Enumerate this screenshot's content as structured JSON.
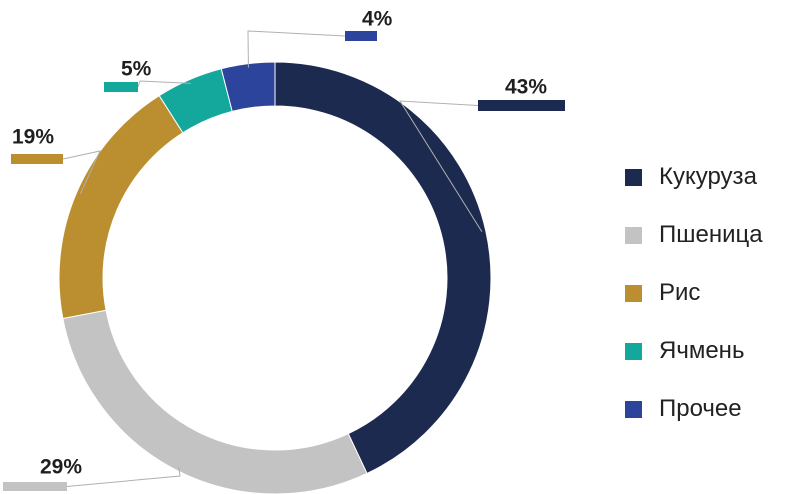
{
  "chart_data": {
    "type": "pie",
    "donut": true,
    "title": "",
    "labels": [
      "Кукуруза",
      "Пшеница",
      "Рис",
      "Ячмень",
      "Прочее"
    ],
    "values": [
      43,
      29,
      19,
      5,
      4
    ],
    "value_labels": [
      "43%",
      "29%",
      "19%",
      "5%",
      "4%"
    ],
    "colors": [
      "#1c2a4f",
      "#c3c3c3",
      "#bb8f30",
      "#14a89c",
      "#2c449b"
    ],
    "legend_position": "right",
    "start": "top",
    "direction": "clockwise"
  },
  "legend": {
    "items": [
      {
        "label": "Кукуруза",
        "color": "#1c2a4f"
      },
      {
        "label": "Пшеница",
        "color": "#c3c3c3"
      },
      {
        "label": "Рис",
        "color": "#bb8f30"
      },
      {
        "label": "Ячмень",
        "color": "#14a89c"
      },
      {
        "label": "Прочее",
        "color": "#2c449b"
      }
    ]
  }
}
